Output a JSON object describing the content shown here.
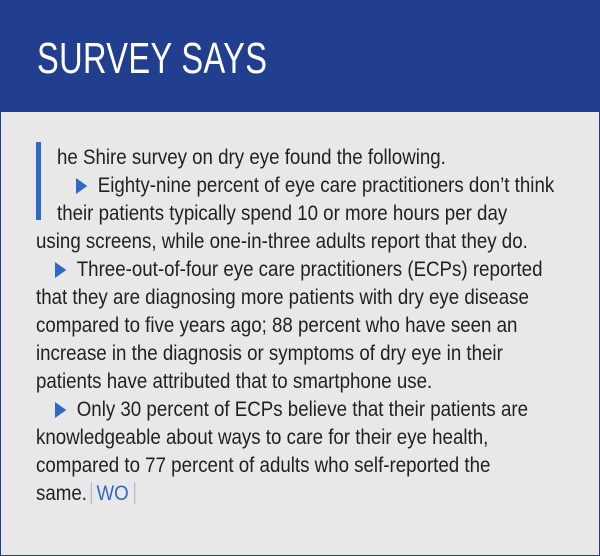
{
  "header": {
    "title": "SURVEY SAYS"
  },
  "colors": {
    "header_bg": "#223f8f",
    "accent": "#2f69c8",
    "panel_bg": "#e8e8e8"
  },
  "icons": {
    "bullet": "triangle-right-icon",
    "dropcap": "vertical-bar-icon"
  },
  "lines": [
    "he Shire survey on dry eye found the following.",
    "Eighty-nine percent of eye care practitioners don’t think",
    "their patients typically spend 10 or more hours per day",
    "using screens, while one-in-three adults report that they do.",
    "Three-out-of-four eye care practitioners (ECPs) reported",
    "that they are diagnosing more patients with dry eye disease",
    "compared to five years ago; 88 percent who have seen an",
    "increase in the diagnosis or symptoms of dry eye in their",
    "patients have attributed that to smartphone use.",
    "Only 30 percent of ECPs believe that their patients are",
    "knowledgeable about ways to care for their eye health,",
    "compared to 77 percent of adults who self-reported the",
    "same."
  ],
  "end_mark": "WO"
}
